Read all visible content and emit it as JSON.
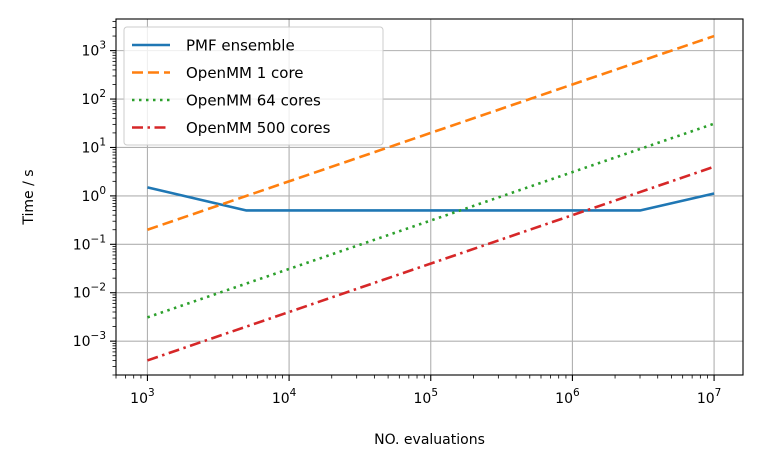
{
  "chart_data": {
    "type": "line",
    "xscale": "log",
    "yscale": "log",
    "xlabel": "NO. evaluations",
    "ylabel": "Time / s",
    "xlim": [
      600,
      16000000
    ],
    "ylim": [
      0.0002,
      4500
    ],
    "grid": true,
    "legend_position": "top-left",
    "x_ticks": [
      {
        "value": 1000,
        "base": "10",
        "exp": "3"
      },
      {
        "value": 10000,
        "base": "10",
        "exp": "4"
      },
      {
        "value": 100000,
        "base": "10",
        "exp": "5"
      },
      {
        "value": 1000000,
        "base": "10",
        "exp": "6"
      },
      {
        "value": 10000000,
        "base": "10",
        "exp": "7"
      }
    ],
    "y_ticks": [
      {
        "value": 0.001,
        "base": "10",
        "exp": "−3"
      },
      {
        "value": 0.01,
        "base": "10",
        "exp": "−2"
      },
      {
        "value": 0.1,
        "base": "10",
        "exp": "−1"
      },
      {
        "value": 1,
        "base": "10",
        "exp": "0"
      },
      {
        "value": 10,
        "base": "10",
        "exp": "1"
      },
      {
        "value": 100,
        "base": "10",
        "exp": "2"
      },
      {
        "value": 1000,
        "base": "10",
        "exp": "3"
      }
    ],
    "series": [
      {
        "name": "PMF ensemble",
        "color": "#1f77b4",
        "dash": "solid",
        "x": [
          1000,
          5000,
          10000,
          100000,
          1000000,
          3000000,
          10000000
        ],
        "y": [
          1.5,
          0.5,
          0.5,
          0.5,
          0.5,
          0.5,
          1.12
        ]
      },
      {
        "name": "OpenMM 1 core",
        "color": "#ff7f0e",
        "dash": "dashed",
        "x": [
          1000,
          10000000
        ],
        "y": [
          0.2,
          2000
        ]
      },
      {
        "name": "OpenMM 64 cores",
        "color": "#2ca02c",
        "dash": "dotted",
        "x": [
          1000,
          10000000
        ],
        "y": [
          0.0031,
          31
        ]
      },
      {
        "name": "OpenMM 500 cores",
        "color": "#d62728",
        "dash": "dashdot",
        "x": [
          1000,
          10000000
        ],
        "y": [
          0.0004,
          4
        ]
      }
    ]
  }
}
